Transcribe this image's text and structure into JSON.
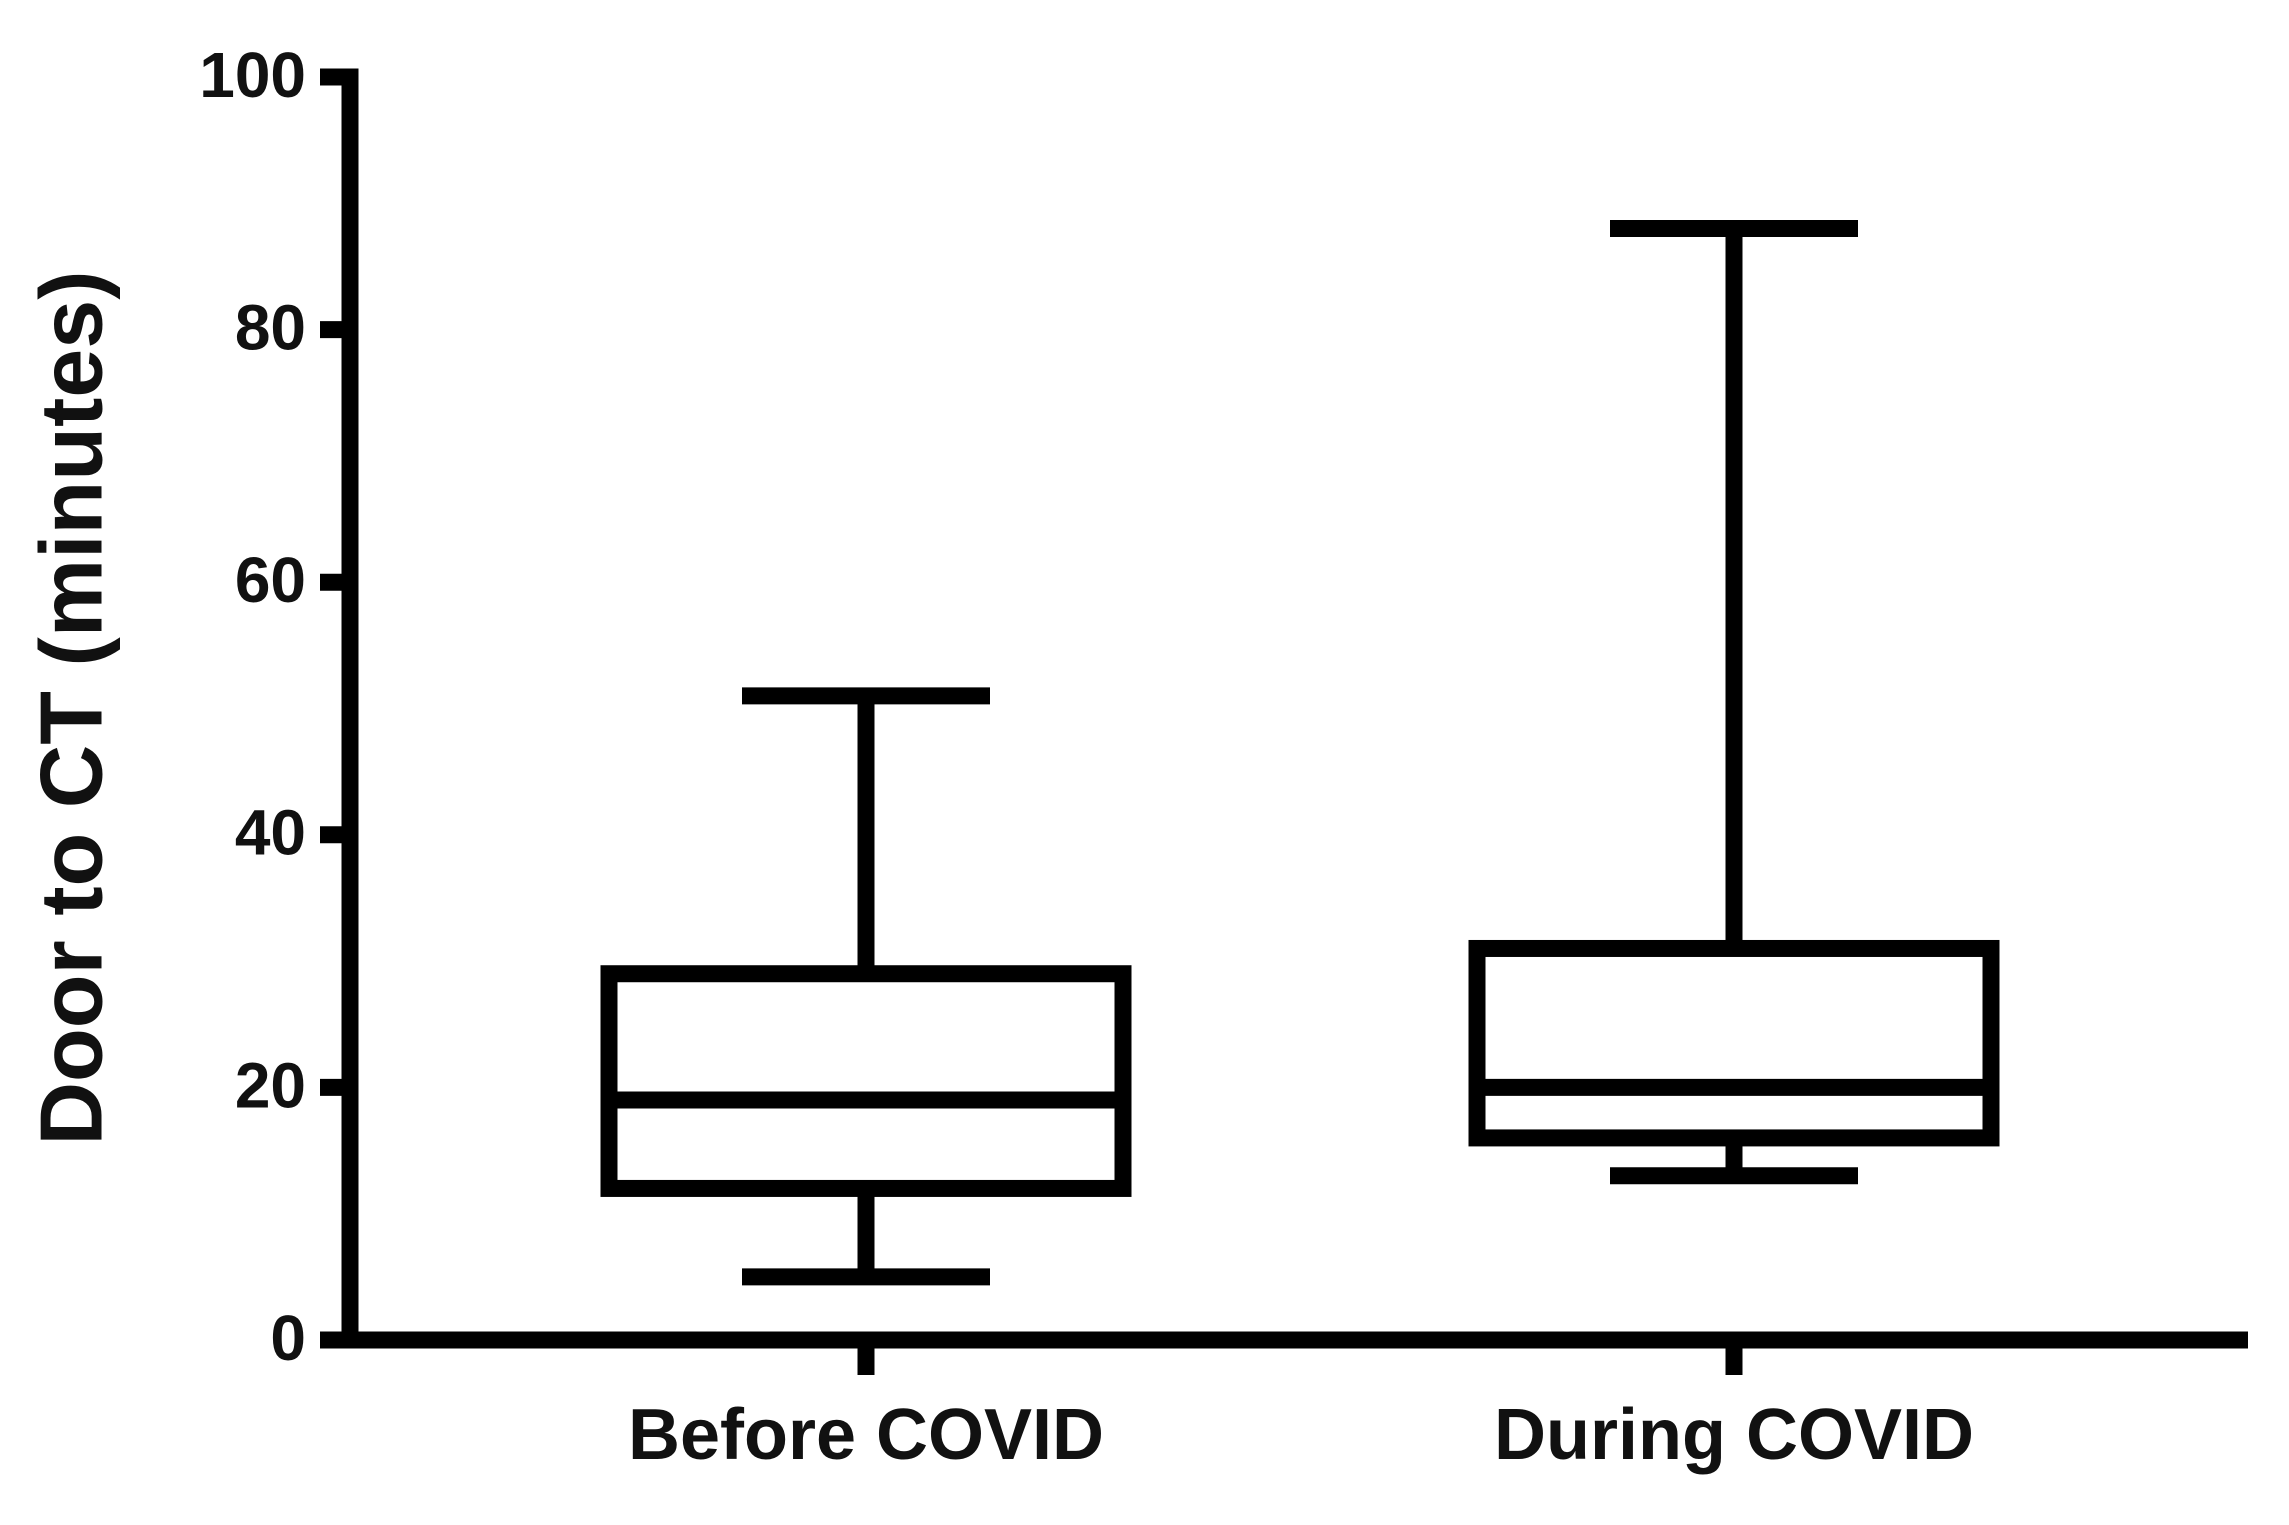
{
  "chart_data": {
    "type": "box",
    "y_label": "Door to CT (minutes)",
    "categories": [
      "Before COVID",
      "During COVID"
    ],
    "min": [
      5,
      13
    ],
    "q1": [
      12,
      16
    ],
    "median": [
      19,
      20
    ],
    "q3": [
      29,
      31
    ],
    "max": [
      51,
      88
    ],
    "color": "#000000",
    "ylim": [
      0,
      100
    ],
    "yticks": [
      0,
      20,
      40,
      60,
      80,
      100
    ]
  }
}
